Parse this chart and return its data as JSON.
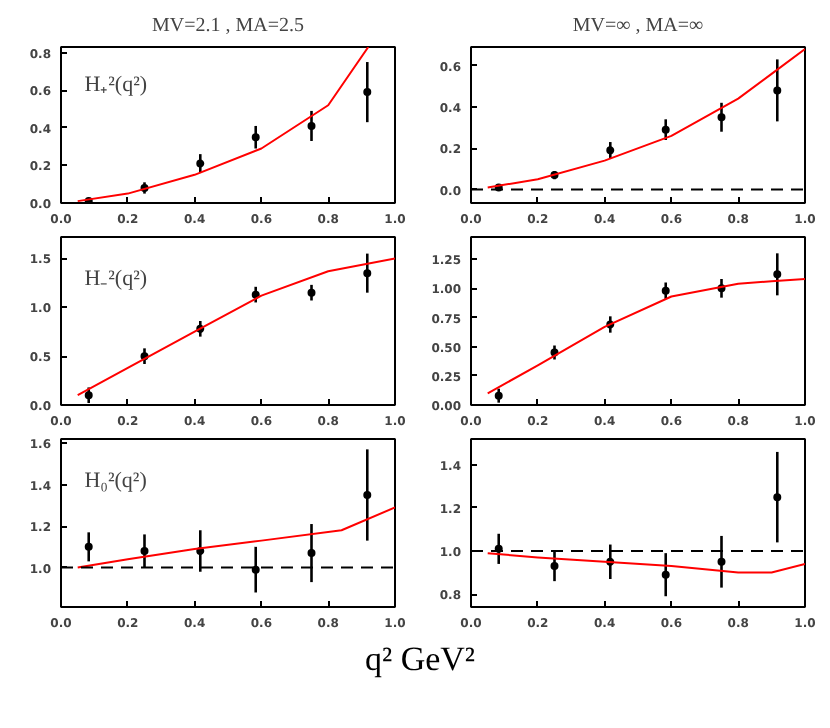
{
  "chart_data": [
    {
      "type": "scatter",
      "title": "MV=2.1 , MA=2.5",
      "annotations": [
        "H₊²(q²)"
      ],
      "xlim": [
        0,
        1
      ],
      "ylim": [
        0,
        0.83
      ],
      "xticks": [
        {
          "value": 0,
          "label": "0.0"
        },
        {
          "value": 0.2,
          "label": "0.2"
        },
        {
          "value": 0.4,
          "label": "0.4"
        },
        {
          "value": 0.6,
          "label": "0.6"
        },
        {
          "value": 0.8,
          "label": "0.8"
        },
        {
          "value": 1,
          "label": "1.0"
        }
      ],
      "yticks": [
        {
          "value": 0,
          "label": "0.0"
        },
        {
          "value": 0.2,
          "label": "0.2"
        },
        {
          "value": 0.4,
          "label": "0.4"
        },
        {
          "value": 0.6,
          "label": "0.6"
        },
        {
          "value": 0.8,
          "label": "0.8"
        }
      ],
      "grid": false,
      "marker": "circle",
      "series": [
        {
          "color": "#000000",
          "x": [
            0.083,
            0.25,
            0.417,
            0.583,
            0.75,
            0.917
          ],
          "values": [
            0.01,
            0.08,
            0.21,
            0.35,
            0.41,
            0.59
          ],
          "errors": [
            0.01,
            0.03,
            0.05,
            0.06,
            0.08,
            0.16
          ]
        },
        {
          "type": "line",
          "color": "#ff0000",
          "x": [
            0.05,
            0.2,
            0.4,
            0.6,
            0.8,
            0.92
          ],
          "values": [
            0.01,
            0.05,
            0.15,
            0.29,
            0.52,
            0.83
          ],
          "marker": "none"
        }
      ]
    },
    {
      "type": "scatter",
      "title": "MV=∞ , MA=∞",
      "xlim": [
        0,
        1
      ],
      "ylim": [
        -0.065,
        0.69
      ],
      "xticks": [
        {
          "value": 0,
          "label": "0.0"
        },
        {
          "value": 0.2,
          "label": "0.2"
        },
        {
          "value": 0.4,
          "label": "0.4"
        },
        {
          "value": 0.6,
          "label": "0.6"
        },
        {
          "value": 0.8,
          "label": "0.8"
        },
        {
          "value": 1,
          "label": "1.0"
        }
      ],
      "yticks": [
        {
          "value": 0,
          "label": "0.0"
        },
        {
          "value": 0.2,
          "label": "0.2"
        },
        {
          "value": 0.4,
          "label": "0.4"
        },
        {
          "value": 0.6,
          "label": "0.6"
        }
      ],
      "grid": false,
      "marker": "circle",
      "ref_lines": [
        {
          "axis": "y",
          "value": 0,
          "color": "#000000",
          "line_style": "dashed"
        }
      ],
      "series": [
        {
          "color": "#000000",
          "x": [
            0.083,
            0.25,
            0.417,
            0.583,
            0.75,
            0.917
          ],
          "values": [
            0.01,
            0.07,
            0.19,
            0.29,
            0.35,
            0.48
          ],
          "errors": [
            0.01,
            0.02,
            0.04,
            0.05,
            0.07,
            0.15
          ]
        },
        {
          "type": "line",
          "color": "#ff0000",
          "x": [
            0.05,
            0.2,
            0.4,
            0.6,
            0.8,
            0.9,
            1.0
          ],
          "values": [
            0.01,
            0.05,
            0.14,
            0.26,
            0.44,
            0.56,
            0.68
          ],
          "marker": "none"
        }
      ]
    },
    {
      "type": "scatter",
      "annotations": [
        "H₋²(q²)"
      ],
      "xlim": [
        0,
        1
      ],
      "ylim": [
        0,
        1.72
      ],
      "xticks": [
        {
          "value": 0,
          "label": "0.0"
        },
        {
          "value": 0.2,
          "label": "0.2"
        },
        {
          "value": 0.4,
          "label": "0.4"
        },
        {
          "value": 0.6,
          "label": "0.6"
        },
        {
          "value": 0.8,
          "label": "0.8"
        },
        {
          "value": 1,
          "label": "1.0"
        }
      ],
      "yticks": [
        {
          "value": 0,
          "label": "0.0"
        },
        {
          "value": 0.5,
          "label": "0.5"
        },
        {
          "value": 1,
          "label": "1.0"
        },
        {
          "value": 1.5,
          "label": "1.5"
        }
      ],
      "grid": false,
      "marker": "circle",
      "series": [
        {
          "color": "#000000",
          "x": [
            0.083,
            0.25,
            0.417,
            0.583,
            0.75,
            0.917
          ],
          "values": [
            0.1,
            0.5,
            0.78,
            1.13,
            1.15,
            1.35
          ],
          "errors": [
            0.08,
            0.08,
            0.08,
            0.08,
            0.08,
            0.2
          ]
        },
        {
          "type": "line",
          "color": "#ff0000",
          "x": [
            0.05,
            0.2,
            0.4,
            0.6,
            0.8,
            1.0
          ],
          "values": [
            0.1,
            0.38,
            0.75,
            1.12,
            1.37,
            1.5
          ],
          "marker": "none"
        }
      ]
    },
    {
      "type": "scatter",
      "xlim": [
        0,
        1
      ],
      "ylim": [
        0,
        1.44
      ],
      "xticks": [
        {
          "value": 0,
          "label": "0.0"
        },
        {
          "value": 0.2,
          "label": "0.2"
        },
        {
          "value": 0.4,
          "label": "0.4"
        },
        {
          "value": 0.6,
          "label": "0.6"
        },
        {
          "value": 0.8,
          "label": "0.8"
        },
        {
          "value": 1,
          "label": "1.0"
        }
      ],
      "yticks": [
        {
          "value": 0,
          "label": "0.00"
        },
        {
          "value": 0.25,
          "label": "0.25"
        },
        {
          "value": 0.5,
          "label": "0.50"
        },
        {
          "value": 0.75,
          "label": "0.75"
        },
        {
          "value": 1,
          "label": "1.00"
        },
        {
          "value": 1.25,
          "label": "1.25"
        }
      ],
      "grid": false,
      "marker": "circle",
      "series": [
        {
          "color": "#000000",
          "x": [
            0.083,
            0.25,
            0.417,
            0.583,
            0.75,
            0.917
          ],
          "values": [
            0.08,
            0.45,
            0.69,
            0.98,
            1.0,
            1.12
          ],
          "errors": [
            0.06,
            0.06,
            0.07,
            0.07,
            0.08,
            0.18
          ]
        },
        {
          "type": "line",
          "color": "#ff0000",
          "x": [
            0.05,
            0.2,
            0.4,
            0.6,
            0.8,
            0.9,
            1.0
          ],
          "values": [
            0.1,
            0.34,
            0.67,
            0.93,
            1.04,
            1.06,
            1.08
          ],
          "marker": "none"
        }
      ]
    },
    {
      "type": "scatter",
      "annotations": [
        "H₀²(q²)"
      ],
      "xlabel": "q²  GeV²",
      "xlim": [
        0,
        1
      ],
      "ylim": [
        0.81,
        1.62
      ],
      "xticks": [
        {
          "value": 0,
          "label": "0.0"
        },
        {
          "value": 0.2,
          "label": "0.2"
        },
        {
          "value": 0.4,
          "label": "0.4"
        },
        {
          "value": 0.6,
          "label": "0.6"
        },
        {
          "value": 0.8,
          "label": "0.8"
        },
        {
          "value": 1,
          "label": "1.0"
        }
      ],
      "yticks": [
        {
          "value": 1,
          "label": "1.0"
        },
        {
          "value": 1.2,
          "label": "1.2"
        },
        {
          "value": 1.4,
          "label": "1.4"
        },
        {
          "value": 1.6,
          "label": "1.6"
        }
      ],
      "grid": false,
      "marker": "circle",
      "ref_lines": [
        {
          "axis": "y",
          "value": 1,
          "color": "#000000",
          "line_style": "dashed"
        }
      ],
      "series": [
        {
          "color": "#000000",
          "x": [
            0.083,
            0.25,
            0.417,
            0.583,
            0.75,
            0.917
          ],
          "values": [
            1.1,
            1.08,
            1.08,
            0.99,
            1.07,
            1.35
          ],
          "errors": [
            0.07,
            0.08,
            0.1,
            0.11,
            0.14,
            0.22
          ]
        },
        {
          "type": "line",
          "color": "#ff0000",
          "x": [
            0.05,
            0.2,
            0.4,
            0.6,
            0.84,
            1.0
          ],
          "values": [
            1.0,
            1.04,
            1.09,
            1.13,
            1.18,
            1.29
          ],
          "marker": "none"
        }
      ]
    },
    {
      "type": "scatter",
      "xlim": [
        0,
        1
      ],
      "ylim": [
        0.74,
        1.52
      ],
      "xticks": [
        {
          "value": 0,
          "label": "0.0"
        },
        {
          "value": 0.2,
          "label": "0.2"
        },
        {
          "value": 0.4,
          "label": "0.4"
        },
        {
          "value": 0.6,
          "label": "0.6"
        },
        {
          "value": 0.8,
          "label": "0.8"
        },
        {
          "value": 1,
          "label": "1.0"
        }
      ],
      "yticks": [
        {
          "value": 0.8,
          "label": "0.8"
        },
        {
          "value": 1,
          "label": "1.0"
        },
        {
          "value": 1.2,
          "label": "1.2"
        },
        {
          "value": 1.4,
          "label": "1.4"
        }
      ],
      "grid": false,
      "marker": "circle",
      "ref_lines": [
        {
          "axis": "y",
          "value": 1,
          "color": "#000000",
          "line_style": "dashed"
        }
      ],
      "series": [
        {
          "color": "#000000",
          "x": [
            0.083,
            0.25,
            0.417,
            0.583,
            0.75,
            0.917
          ],
          "values": [
            1.01,
            0.93,
            0.95,
            0.89,
            0.95,
            1.25
          ],
          "errors": [
            0.07,
            0.07,
            0.08,
            0.1,
            0.12,
            0.21
          ]
        },
        {
          "type": "line",
          "color": "#ff0000",
          "x": [
            0.05,
            0.2,
            0.4,
            0.6,
            0.8,
            0.9,
            1.0
          ],
          "values": [
            0.99,
            0.97,
            0.95,
            0.93,
            0.9,
            0.9,
            0.94
          ],
          "marker": "none"
        }
      ]
    }
  ]
}
